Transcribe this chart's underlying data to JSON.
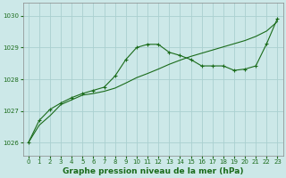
{
  "title": "Graphe pression niveau de la mer (hPa)",
  "background_color": "#cce8e8",
  "grid_color": "#aad0d0",
  "line_color": "#1a6b1a",
  "marker_color": "#1a6b1a",
  "xlim": [
    -0.5,
    23.5
  ],
  "ylim": [
    1025.6,
    1030.4
  ],
  "yticks": [
    1026,
    1027,
    1028,
    1029,
    1030
  ],
  "xticks": [
    0,
    1,
    2,
    3,
    4,
    5,
    6,
    7,
    8,
    9,
    10,
    11,
    12,
    13,
    14,
    15,
    16,
    17,
    18,
    19,
    20,
    21,
    22,
    23
  ],
  "series1_x": [
    0,
    1,
    2,
    3,
    4,
    5,
    6,
    7,
    8,
    9,
    10,
    11,
    12,
    13,
    14,
    15,
    16,
    17,
    18,
    19,
    20,
    21,
    22,
    23
  ],
  "series1_y": [
    1026.0,
    1026.55,
    1026.85,
    1027.2,
    1027.35,
    1027.5,
    1027.55,
    1027.62,
    1027.72,
    1027.88,
    1028.05,
    1028.18,
    1028.32,
    1028.47,
    1028.6,
    1028.72,
    1028.82,
    1028.92,
    1029.02,
    1029.12,
    1029.22,
    1029.35,
    1029.52,
    1029.82
  ],
  "series2_x": [
    0,
    1,
    2,
    3,
    4,
    5,
    6,
    7,
    8,
    9,
    10,
    11,
    12,
    13,
    14,
    15,
    16,
    17,
    18,
    19,
    20,
    21,
    22,
    23
  ],
  "series2_y": [
    1026.0,
    1026.7,
    1027.05,
    1027.25,
    1027.42,
    1027.55,
    1027.65,
    1027.75,
    1028.1,
    1028.62,
    1029.0,
    1029.1,
    1029.1,
    1028.85,
    1028.75,
    1028.62,
    1028.42,
    1028.42,
    1028.42,
    1028.28,
    1028.32,
    1028.42,
    1029.12,
    1029.92
  ],
  "title_fontsize": 6.5,
  "tick_fontsize": 5.0,
  "tick_color": "#1a6b1a"
}
